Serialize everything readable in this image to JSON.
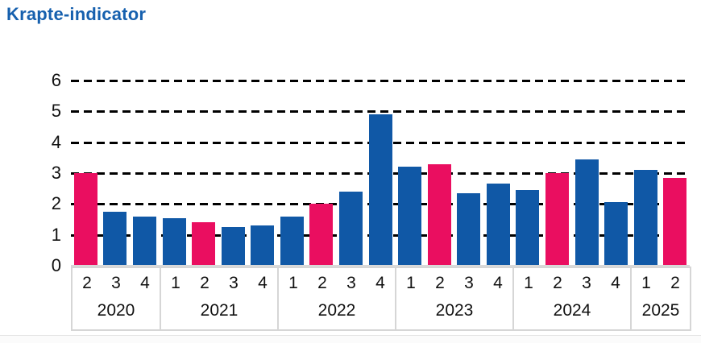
{
  "chart_data": {
    "type": "bar",
    "title": "Krapte-indicator",
    "xlabel": "",
    "ylabel": "",
    "ylim": [
      0,
      6
    ],
    "yticks": [
      0,
      1,
      2,
      3,
      4,
      5,
      6
    ],
    "grid": "horizontal-dashed-black",
    "legend": "none",
    "colors": {
      "bar": "#1058A6",
      "highlight": "#EA0E60",
      "title": "#1660AE",
      "axis_border": "#D6D6D6",
      "baseline": "#D9D9D9"
    },
    "highlight_note": "second-quarter bars are highlighted pink",
    "groups": [
      {
        "year": "2020",
        "quarters": [
          {
            "q": "2",
            "value": 3.0,
            "highlight": true
          },
          {
            "q": "3",
            "value": 1.75,
            "highlight": false
          },
          {
            "q": "4",
            "value": 1.6,
            "highlight": false
          }
        ]
      },
      {
        "year": "2021",
        "quarters": [
          {
            "q": "1",
            "value": 1.55,
            "highlight": false
          },
          {
            "q": "2",
            "value": 1.4,
            "highlight": true
          },
          {
            "q": "3",
            "value": 1.25,
            "highlight": false
          },
          {
            "q": "4",
            "value": 1.3,
            "highlight": false
          }
        ]
      },
      {
        "year": "2022",
        "quarters": [
          {
            "q": "1",
            "value": 1.6,
            "highlight": false
          },
          {
            "q": "2",
            "value": 2.0,
            "highlight": true
          },
          {
            "q": "3",
            "value": 2.4,
            "highlight": false
          },
          {
            "q": "4",
            "value": 4.9,
            "highlight": false
          }
        ]
      },
      {
        "year": "2023",
        "quarters": [
          {
            "q": "1",
            "value": 3.2,
            "highlight": false
          },
          {
            "q": "2",
            "value": 3.3,
            "highlight": true
          },
          {
            "q": "3",
            "value": 2.35,
            "highlight": false
          },
          {
            "q": "4",
            "value": 2.65,
            "highlight": false
          }
        ]
      },
      {
        "year": "2024",
        "quarters": [
          {
            "q": "1",
            "value": 2.45,
            "highlight": false
          },
          {
            "q": "2",
            "value": 3.0,
            "highlight": true
          },
          {
            "q": "3",
            "value": 3.45,
            "highlight": false
          },
          {
            "q": "4",
            "value": 2.05,
            "highlight": false
          }
        ]
      },
      {
        "year": "2025",
        "quarters": [
          {
            "q": "1",
            "value": 3.1,
            "highlight": false
          },
          {
            "q": "2",
            "value": 2.85,
            "highlight": true
          }
        ]
      }
    ]
  }
}
